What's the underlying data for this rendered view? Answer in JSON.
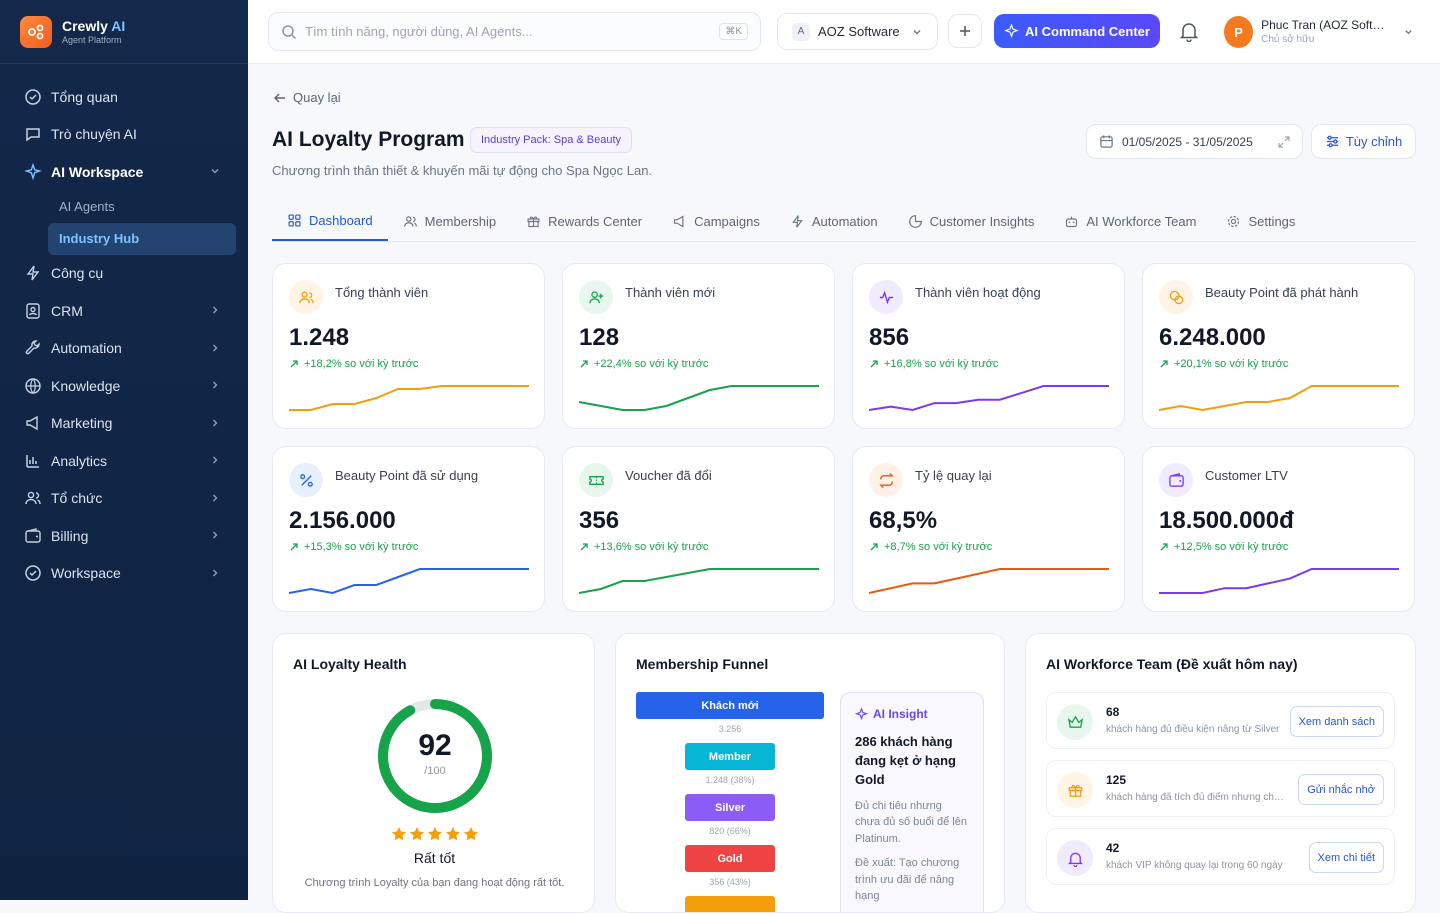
{
  "brand": {
    "name": "Crewly",
    "name_ai": "AI",
    "sub": "Agent Platform"
  },
  "sidebar": {
    "items": [
      {
        "label": "Tổng quan",
        "icon": "clock-check-icon"
      },
      {
        "label": "Trò chuyện AI",
        "icon": "chat-icon"
      },
      {
        "label": "AI Workspace",
        "icon": "sparkle-icon",
        "active": true
      },
      {
        "label": "AI Agents",
        "sub": true
      },
      {
        "label": "Industry Hub",
        "sub": true,
        "active": true
      },
      {
        "label": "Công cụ",
        "icon": "bolt-icon"
      },
      {
        "label": "CRM",
        "icon": "contact-icon"
      },
      {
        "label": "Automation",
        "icon": "wrench-icon"
      },
      {
        "label": "Knowledge",
        "icon": "globe-icon"
      },
      {
        "label": "Marketing",
        "icon": "megaphone-icon"
      },
      {
        "label": "Analytics",
        "icon": "bar-chart-icon"
      },
      {
        "label": "Tổ chức",
        "icon": "users-icon"
      },
      {
        "label": "Billing",
        "icon": "wallet-icon"
      },
      {
        "label": "Workspace",
        "icon": "check-circle-icon"
      }
    ]
  },
  "topbar": {
    "search_placeholder": "Tìm tính năng, người dùng, AI Agents...",
    "shortcut": "⌘K",
    "company_initial": "A",
    "company": "AOZ Software",
    "command_label": "AI Command Center",
    "user_initial": "P",
    "user_name": "Phuc Tran (AOZ Software)",
    "user_role": "Chủ sở hữu"
  },
  "page": {
    "back": "Quay lại",
    "title": "AI Loyalty Program",
    "pack": "Industry Pack: Spa & Beauty",
    "subtitle": "Chương trình thân thiết & khuyến mãi tự động cho Spa Ngọc Lan.",
    "date_range": "01/05/2025 - 31/05/2025",
    "customize": "Tùy chỉnh"
  },
  "tabs": [
    "Dashboard",
    "Membership",
    "Rewards Center",
    "Campaigns",
    "Automation",
    "Customer Insights",
    "AI Workforce Team",
    "Settings"
  ],
  "kpis": [
    {
      "label": "Tổng thành viên",
      "value": "1.248",
      "delta": "+18,2% so với kỳ trước",
      "color": "#f59e0b",
      "bg": "#fff4e5",
      "icon": "users-icon",
      "trend": [
        2,
        2,
        4,
        4,
        6,
        9,
        9,
        10,
        10,
        10,
        10,
        10
      ]
    },
    {
      "label": "Thành viên mới",
      "value": "128",
      "delta": "+22,4% so với kỳ trước",
      "color": "#16a34a",
      "bg": "#e8f7ee",
      "icon": "user-plus-icon",
      "trend": [
        3,
        2,
        1,
        1,
        2,
        4,
        6,
        7,
        7,
        7,
        7,
        7
      ]
    },
    {
      "label": "Thành viên hoạt động",
      "value": "856",
      "delta": "+16,8% so với kỳ trước",
      "color": "#7c3aed",
      "bg": "#f1ebff",
      "icon": "activity-icon",
      "trend": [
        1,
        2,
        1,
        3,
        3,
        4,
        4,
        6,
        8,
        8,
        8,
        8
      ]
    },
    {
      "label": "Beauty Point đã phát hành",
      "value": "6.248.000",
      "delta": "+20,1% so với kỳ trước",
      "color": "#f59e0b",
      "bg": "#fff4e5",
      "icon": "coins-icon",
      "trend": [
        2,
        3,
        2,
        3,
        4,
        4,
        5,
        8,
        8,
        8,
        8,
        8
      ]
    },
    {
      "label": "Beauty Point đã sử dụng",
      "value": "2.156.000",
      "delta": "+15,3% so với kỳ trước",
      "color": "#2563eb",
      "bg": "#e8f0ff",
      "icon": "percent-icon",
      "trend": [
        2,
        3,
        2,
        4,
        4,
        6,
        8,
        8,
        8,
        8,
        8,
        8
      ]
    },
    {
      "label": "Voucher đã đổi",
      "value": "356",
      "delta": "+13,6% so với kỳ trước",
      "color": "#16a34a",
      "bg": "#e8f7ee",
      "icon": "ticket-icon",
      "trend": [
        1,
        2,
        4,
        4,
        5,
        6,
        7,
        7,
        7,
        7,
        7,
        7
      ]
    },
    {
      "label": "Tỷ lệ quay lại",
      "value": "68,5%",
      "delta": "+8,7% so với kỳ trước",
      "color": "#ea580c",
      "bg": "#fff1e8",
      "icon": "repeat-icon",
      "trend": [
        1,
        2,
        3,
        3,
        4,
        5,
        6,
        6,
        6,
        6,
        6,
        6
      ]
    },
    {
      "label": "Customer LTV",
      "value": "18.500.000đ",
      "delta": "+12,5% so với kỳ trước",
      "color": "#7c3aed",
      "bg": "#f1ebff",
      "icon": "wallet-icon",
      "trend": [
        1,
        1,
        1,
        2,
        2,
        3,
        4,
        6,
        6,
        6,
        6,
        6
      ]
    }
  ],
  "health": {
    "title": "AI Loyalty Health",
    "score": "92",
    "of": "/100",
    "score_fraction": 0.92,
    "rating": "Rất tốt",
    "desc": "Chương trình Loyalty của bạn đang hoạt động rất tốt.",
    "stars": 5
  },
  "funnel": {
    "title": "Membership Funnel",
    "stages": [
      {
        "label": "Khách mới",
        "sub": "3.256",
        "color": "#2563eb",
        "width": 188
      },
      {
        "label": "Member",
        "sub": "1.248 (38%)",
        "color": "#06b6d4",
        "width": 90
      },
      {
        "label": "Silver",
        "sub": "820 (66%)",
        "color": "#8b5cf6",
        "width": 90
      },
      {
        "label": "Gold",
        "sub": "356 (43%)",
        "color": "#ef4444",
        "width": 90
      }
    ],
    "insight": {
      "head": "AI Insight",
      "title": "286 khách hàng đang kẹt ở hạng Gold",
      "desc": "Đủ chi tiêu nhưng chưa đủ số buổi để lên Platinum.",
      "suggest": "Đề xuất: Tạo chương trình ưu đãi để nâng hạng"
    }
  },
  "workforce": {
    "title": "AI Workforce Team (Đề xuất hôm nay)",
    "items": [
      {
        "num": "68",
        "desc": "khách hàng đủ điều kiện nâng từ Silver",
        "btn": "Xem danh sách",
        "icon": "crown-icon",
        "color": "#16a34a",
        "bg": "#e8f7ee"
      },
      {
        "num": "125",
        "desc": "khách hàng đã tích đủ điểm nhưng chưa đổi",
        "btn": "Gửi nhắc nhở",
        "icon": "gift-icon",
        "color": "#f59e0b",
        "bg": "#fff4e5"
      },
      {
        "num": "42",
        "desc": "khách VIP không quay lại trong 60 ngày",
        "btn": "Xem chi tiết",
        "icon": "bell-icon",
        "color": "#7c3aed",
        "bg": "#f1ebff"
      }
    ]
  }
}
